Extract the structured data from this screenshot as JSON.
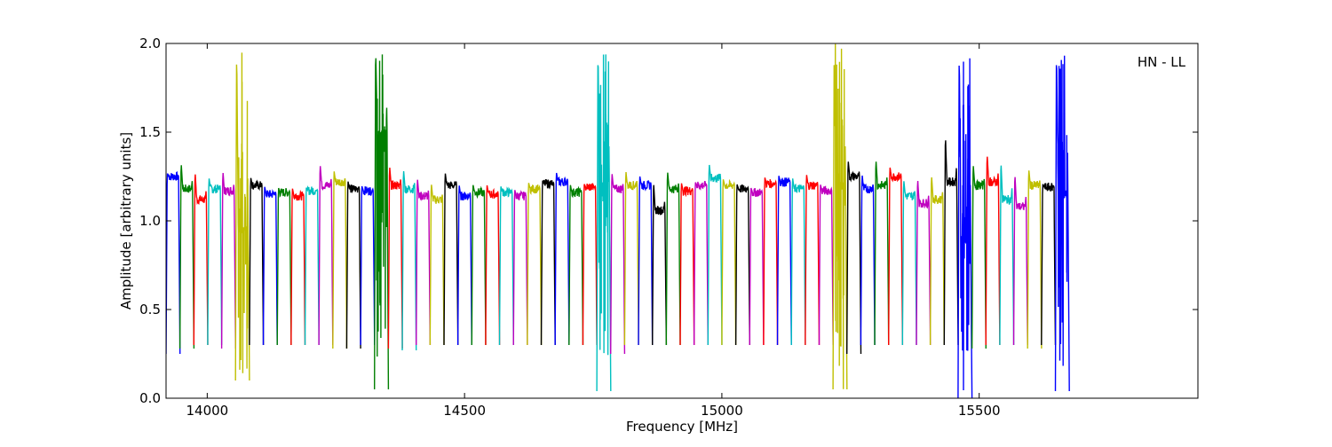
{
  "chart_data": {
    "type": "line",
    "title": "",
    "xlabel": "Frequency [MHz]",
    "ylabel": "Amplitude [arbitrary units]",
    "annotation": "HN - LL",
    "xlim": [
      13920,
      15925
    ],
    "ylim": [
      0.0,
      2.0
    ],
    "xticks": [
      14000,
      14500,
      15000,
      15500
    ],
    "yticks": [
      0.0,
      0.5,
      1.0,
      1.5,
      2.0
    ],
    "ytick_labels": [
      "0.0",
      "0.5",
      "1.0",
      "1.5",
      "2.0"
    ],
    "grid": false,
    "colors": {
      "blue": "#0000ff",
      "green": "#007f00",
      "red": "#ff0000",
      "cyan": "#00bfbf",
      "magenta": "#bf00bf",
      "olive": "#bfbf00",
      "black": "#000000",
      "gray": "#bfbfbf"
    },
    "channel_bandwidth_mhz": 27.1,
    "channels": [
      {
        "start": 13920,
        "color": "blue",
        "plateau": 1.25,
        "edge_peak": 1.27,
        "floor": 0.25
      },
      {
        "start": 13947,
        "color": "green",
        "plateau": 1.18,
        "edge_peak": 1.34,
        "floor": 0.28
      },
      {
        "start": 13974,
        "color": "red",
        "plateau": 1.12,
        "edge_peak": 1.29,
        "floor": 0.3
      },
      {
        "start": 14001,
        "color": "cyan",
        "plateau": 1.18,
        "edge_peak": 1.25,
        "floor": 0.3
      },
      {
        "start": 14028,
        "color": "magenta",
        "plateau": 1.17,
        "edge_peak": 1.29,
        "floor": 0.28
      },
      {
        "start": 14055,
        "color": "olive",
        "plateau": 0.95,
        "edge_peak": 2.0,
        "floor": 0.1
      },
      {
        "start": 14082,
        "color": "black",
        "plateau": 1.2,
        "edge_peak": 1.25,
        "floor": 0.3
      },
      {
        "start": 14109,
        "color": "blue",
        "plateau": 1.15,
        "edge_peak": 1.2,
        "floor": 0.3
      },
      {
        "start": 14136,
        "color": "green",
        "plateau": 1.16,
        "edge_peak": 1.19,
        "floor": 0.3
      },
      {
        "start": 14163,
        "color": "red",
        "plateau": 1.14,
        "edge_peak": 1.19,
        "floor": 0.3
      },
      {
        "start": 14190,
        "color": "cyan",
        "plateau": 1.17,
        "edge_peak": 1.19,
        "floor": 0.3
      },
      {
        "start": 14217,
        "color": "magenta",
        "plateau": 1.2,
        "edge_peak": 1.33,
        "floor": 0.3
      },
      {
        "start": 14244,
        "color": "olive",
        "plateau": 1.22,
        "edge_peak": 1.29,
        "floor": 0.28
      },
      {
        "start": 14271,
        "color": "black",
        "plateau": 1.18,
        "edge_peak": 1.23,
        "floor": 0.28
      },
      {
        "start": 14298,
        "color": "blue",
        "plateau": 1.17,
        "edge_peak": 1.2,
        "floor": 0.3
      },
      {
        "start": 14325,
        "color": "green",
        "plateau": 1.5,
        "edge_peak": 2.0,
        "floor": 0.05
      },
      {
        "start": 14352,
        "color": "red",
        "plateau": 1.2,
        "edge_peak": 1.32,
        "floor": 0.28
      },
      {
        "start": 14379,
        "color": "cyan",
        "plateau": 1.18,
        "edge_peak": 1.3,
        "floor": 0.27
      },
      {
        "start": 14406,
        "color": "magenta",
        "plateau": 1.14,
        "edge_peak": 1.25,
        "floor": 0.3
      },
      {
        "start": 14433,
        "color": "olive",
        "plateau": 1.12,
        "edge_peak": 1.22,
        "floor": 0.3
      },
      {
        "start": 14460,
        "color": "black",
        "plateau": 1.2,
        "edge_peak": 1.28,
        "floor": 0.3
      },
      {
        "start": 14487,
        "color": "blue",
        "plateau": 1.14,
        "edge_peak": 1.21,
        "floor": 0.3
      },
      {
        "start": 14514,
        "color": "green",
        "plateau": 1.16,
        "edge_peak": 1.21,
        "floor": 0.3
      },
      {
        "start": 14541,
        "color": "red",
        "plateau": 1.15,
        "edge_peak": 1.21,
        "floor": 0.3
      },
      {
        "start": 14568,
        "color": "cyan",
        "plateau": 1.16,
        "edge_peak": 1.2,
        "floor": 0.3
      },
      {
        "start": 14595,
        "color": "magenta",
        "plateau": 1.14,
        "edge_peak": 1.18,
        "floor": 0.3
      },
      {
        "start": 14622,
        "color": "olive",
        "plateau": 1.18,
        "edge_peak": 1.22,
        "floor": 0.3
      },
      {
        "start": 14649,
        "color": "black",
        "plateau": 1.21,
        "edge_peak": 1.23,
        "floor": 0.3
      },
      {
        "start": 14676,
        "color": "blue",
        "plateau": 1.22,
        "edge_peak": 1.28,
        "floor": 0.3
      },
      {
        "start": 14703,
        "color": "green",
        "plateau": 1.16,
        "edge_peak": 1.21,
        "floor": 0.3
      },
      {
        "start": 14730,
        "color": "red",
        "plateau": 1.19,
        "edge_peak": 1.21,
        "floor": 0.3
      },
      {
        "start": 14757,
        "color": "cyan",
        "plateau": 1.2,
        "edge_peak": 2.0,
        "floor": 0.04
      },
      {
        "start": 14784,
        "color": "magenta",
        "plateau": 1.18,
        "edge_peak": 1.28,
        "floor": 0.25
      },
      {
        "start": 14811,
        "color": "olive",
        "plateau": 1.2,
        "edge_peak": 1.29,
        "floor": 0.3
      },
      {
        "start": 14838,
        "color": "blue",
        "plateau": 1.2,
        "edge_peak": 1.26,
        "floor": 0.3
      },
      {
        "start": 14865,
        "color": "black",
        "plateau": 1.06,
        "edge_peak": 1.23,
        "floor": 0.3
      },
      {
        "start": 14892,
        "color": "green",
        "plateau": 1.18,
        "edge_peak": 1.29,
        "floor": 0.3
      },
      {
        "start": 14919,
        "color": "red",
        "plateau": 1.17,
        "edge_peak": 1.22,
        "floor": 0.3
      },
      {
        "start": 14946,
        "color": "magenta",
        "plateau": 1.2,
        "edge_peak": 1.22,
        "floor": 0.3
      },
      {
        "start": 14973,
        "color": "cyan",
        "plateau": 1.24,
        "edge_peak": 1.33,
        "floor": 0.3
      },
      {
        "start": 15000,
        "color": "olive",
        "plateau": 1.2,
        "edge_peak": 1.24,
        "floor": 0.3
      },
      {
        "start": 15027,
        "color": "black",
        "plateau": 1.18,
        "edge_peak": 1.21,
        "floor": 0.3
      },
      {
        "start": 15054,
        "color": "magenta",
        "plateau": 1.16,
        "edge_peak": 1.19,
        "floor": 0.3
      },
      {
        "start": 15081,
        "color": "red",
        "plateau": 1.21,
        "edge_peak": 1.25,
        "floor": 0.3
      },
      {
        "start": 15108,
        "color": "blue",
        "plateau": 1.22,
        "edge_peak": 1.26,
        "floor": 0.3
      },
      {
        "start": 15135,
        "color": "cyan",
        "plateau": 1.18,
        "edge_peak": 1.25,
        "floor": 0.3
      },
      {
        "start": 15162,
        "color": "red",
        "plateau": 1.2,
        "edge_peak": 1.27,
        "floor": 0.3
      },
      {
        "start": 15189,
        "color": "magenta",
        "plateau": 1.17,
        "edge_peak": 1.21,
        "floor": 0.3
      },
      {
        "start": 15216,
        "color": "olive",
        "plateau": 1.2,
        "edge_peak": 2.0,
        "floor": 0.05
      },
      {
        "start": 15243,
        "color": "black",
        "plateau": 1.25,
        "edge_peak": 1.35,
        "floor": 0.25
      },
      {
        "start": 15270,
        "color": "blue",
        "plateau": 1.18,
        "edge_peak": 1.27,
        "floor": 0.3
      },
      {
        "start": 15297,
        "color": "green",
        "plateau": 1.2,
        "edge_peak": 1.36,
        "floor": 0.3
      },
      {
        "start": 15324,
        "color": "red",
        "plateau": 1.25,
        "edge_peak": 1.31,
        "floor": 0.3
      },
      {
        "start": 15351,
        "color": "cyan",
        "plateau": 1.14,
        "edge_peak": 1.24,
        "floor": 0.3
      },
      {
        "start": 15378,
        "color": "magenta",
        "plateau": 1.1,
        "edge_peak": 1.25,
        "floor": 0.3
      },
      {
        "start": 15405,
        "color": "olive",
        "plateau": 1.12,
        "edge_peak": 1.27,
        "floor": 0.3
      },
      {
        "start": 15432,
        "color": "black",
        "plateau": 1.22,
        "edge_peak": 1.5,
        "floor": 0.3
      },
      {
        "start": 15459,
        "color": "blue",
        "plateau": 0.9,
        "edge_peak": 2.0,
        "floor": 0.0
      },
      {
        "start": 15486,
        "color": "green",
        "plateau": 1.2,
        "edge_peak": 1.33,
        "floor": 0.28
      },
      {
        "start": 15513,
        "color": "red",
        "plateau": 1.22,
        "edge_peak": 1.39,
        "floor": 0.3
      },
      {
        "start": 15540,
        "color": "cyan",
        "plateau": 1.12,
        "edge_peak": 1.35,
        "floor": 0.3
      },
      {
        "start": 15567,
        "color": "magenta",
        "plateau": 1.08,
        "edge_peak": 1.28,
        "floor": 0.3
      },
      {
        "start": 15594,
        "color": "olive",
        "plateau": 1.2,
        "edge_peak": 1.3,
        "floor": 0.28
      },
      {
        "start": 15621,
        "color": "black",
        "plateau": 1.19,
        "edge_peak": 1.21,
        "floor": 0.3
      },
      {
        "start": 15648,
        "color": "blue",
        "plateau": 1.15,
        "edge_peak": 2.0,
        "floor": 0.04
      }
    ]
  }
}
